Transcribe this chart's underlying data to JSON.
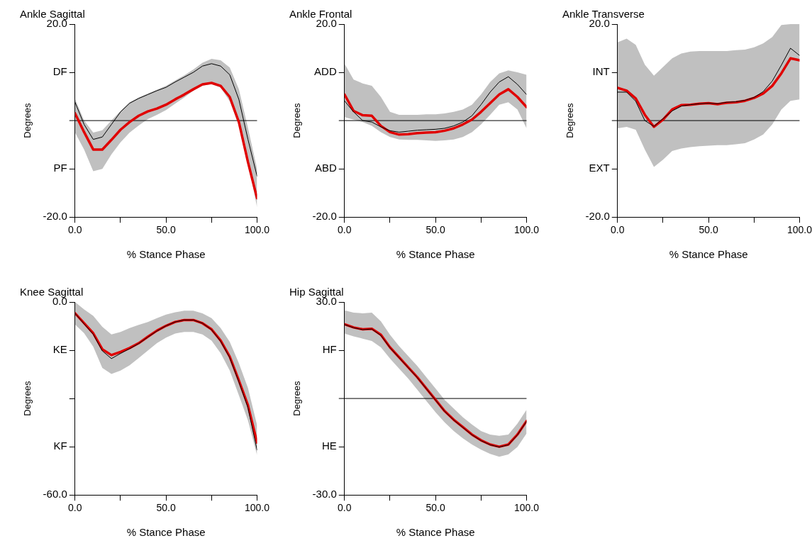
{
  "chart_data": [
    {
      "type": "line",
      "title": "Ankle Sagittal",
      "xlabel": "% Stance Phase",
      "ylabel": "Degrees",
      "x": [
        0,
        5,
        10,
        15,
        20,
        25,
        30,
        35,
        40,
        45,
        50,
        55,
        60,
        65,
        70,
        75,
        80,
        85,
        90,
        95,
        100
      ],
      "xlim": [
        0,
        100
      ],
      "xticks": [
        {
          "value": 0,
          "label": "0.0"
        },
        {
          "value": 25,
          "label": null
        },
        {
          "value": 50,
          "label": "50.0"
        },
        {
          "value": 75,
          "label": null
        },
        {
          "value": 100,
          "label": "100.0"
        }
      ],
      "ylim": [
        -20,
        20
      ],
      "yticks": [
        {
          "value": 20,
          "label": "20.0"
        },
        {
          "value": 10,
          "label": "DF"
        },
        {
          "value": -10,
          "label": "PF"
        },
        {
          "value": -20,
          "label": "-20.0"
        }
      ],
      "ref_lines": [
        {
          "axis": "y",
          "value": 0,
          "color": "#000000"
        }
      ],
      "grid": false,
      "legend": false,
      "marker": "none",
      "line_style": "solid",
      "series": [
        {
          "color": "#000000",
          "values": [
            3.8,
            -0.8,
            -3.9,
            -3.4,
            -0.8,
            1.8,
            3.6,
            4.6,
            5.4,
            6.2,
            6.9,
            8,
            9,
            10,
            11.3,
            11.8,
            11.3,
            9.5,
            4.4,
            -3.9,
            -11.5
          ],
          "lower": [
            -2.5,
            -6,
            -10.5,
            -10,
            -7,
            -4.5,
            -2.5,
            -1,
            0.3,
            1.2,
            2.2,
            3.5,
            4.8,
            6.2,
            7.2,
            7.6,
            6.8,
            4,
            -1,
            -8.5,
            -18
          ],
          "upper": [
            4.5,
            0,
            -2.5,
            -2,
            0,
            2,
            3.8,
            4.8,
            5.6,
            6.4,
            7.2,
            8.3,
            9.4,
            10.6,
            12,
            12.8,
            12.5,
            11,
            6.5,
            -1.5,
            -10
          ]
        },
        {
          "color": "#e00000",
          "values": [
            1.5,
            -2.4,
            -6,
            -6,
            -4,
            -1.9,
            -0.3,
            1,
            1.9,
            2.5,
            3.3,
            4.4,
            5.4,
            6.5,
            7.5,
            7.8,
            7.2,
            4.9,
            -0.3,
            -8.6,
            -16.1
          ]
        }
      ]
    },
    {
      "type": "line",
      "title": "Ankle Frontal",
      "xlabel": "% Stance Phase",
      "ylabel": "Degrees",
      "x": [
        0,
        5,
        10,
        15,
        20,
        25,
        30,
        35,
        40,
        45,
        50,
        55,
        60,
        65,
        70,
        75,
        80,
        85,
        90,
        95,
        100
      ],
      "xlim": [
        0,
        100
      ],
      "xticks": [
        {
          "value": 0,
          "label": "0.0"
        },
        {
          "value": 25,
          "label": null
        },
        {
          "value": 50,
          "label": "50.0"
        },
        {
          "value": 75,
          "label": null
        },
        {
          "value": 100,
          "label": "100.0"
        }
      ],
      "ylim": [
        -20,
        20
      ],
      "yticks": [
        {
          "value": 20,
          "label": "20.0"
        },
        {
          "value": 10,
          "label": "ADD"
        },
        {
          "value": -10,
          "label": "ABD"
        },
        {
          "value": -20,
          "label": "-20.0"
        }
      ],
      "ref_lines": [
        {
          "axis": "y",
          "value": 0,
          "color": "#000000"
        }
      ],
      "grid": false,
      "legend": false,
      "marker": "none",
      "line_style": "solid",
      "series": [
        {
          "color": "#000000",
          "values": [
            4.1,
            1.8,
            0,
            -0.3,
            -1.3,
            -2.1,
            -2.4,
            -2.2,
            -2,
            -1.9,
            -1.8,
            -1.6,
            -1.1,
            -0.3,
            1,
            3.3,
            5.9,
            8,
            9.1,
            7.5,
            5.4
          ],
          "lower": [
            0.7,
            0.2,
            -0.3,
            -1.1,
            -2.4,
            -3.4,
            -3.9,
            -4,
            -4,
            -4.1,
            -4.2,
            -4.1,
            -3.9,
            -3.4,
            -2.4,
            -0.8,
            1.2,
            3.3,
            3.8,
            2.3,
            -1.6
          ],
          "upper": [
            11.8,
            8.5,
            7.7,
            7.2,
            4.9,
            1.8,
            1.2,
            1.2,
            1.2,
            1.3,
            1.3,
            1.5,
            1.8,
            2.3,
            3.3,
            5.4,
            8,
            9.8,
            10.4,
            10,
            9.5
          ]
        },
        {
          "color": "#e00000",
          "values": [
            5.4,
            2,
            1.1,
            1,
            -1.1,
            -2.4,
            -2.9,
            -2.8,
            -2.6,
            -2.5,
            -2.4,
            -2.1,
            -1.6,
            -0.8,
            0.2,
            1.8,
            3.6,
            5.4,
            6.5,
            4.9,
            2.8
          ]
        }
      ]
    },
    {
      "type": "line",
      "title": "Ankle Transverse",
      "xlabel": "% Stance Phase",
      "ylabel": "Degrees",
      "x": [
        0,
        5,
        10,
        15,
        20,
        25,
        30,
        35,
        40,
        45,
        50,
        55,
        60,
        65,
        70,
        75,
        80,
        85,
        90,
        95,
        100
      ],
      "xlim": [
        0,
        100
      ],
      "xticks": [
        {
          "value": 0,
          "label": "0.0"
        },
        {
          "value": 25,
          "label": null
        },
        {
          "value": 50,
          "label": "50.0"
        },
        {
          "value": 75,
          "label": null
        },
        {
          "value": 100,
          "label": "100.0"
        }
      ],
      "ylim": [
        -20,
        20
      ],
      "yticks": [
        {
          "value": 20,
          "label": "20.0"
        },
        {
          "value": 10,
          "label": "INT"
        },
        {
          "value": -10,
          "label": "EXT"
        },
        {
          "value": -20,
          "label": "-20.0"
        }
      ],
      "ref_lines": [
        {
          "axis": "y",
          "value": 0,
          "color": "#000000"
        }
      ],
      "grid": false,
      "legend": false,
      "marker": "none",
      "line_style": "solid",
      "series": [
        {
          "color": "#000000",
          "values": [
            5.9,
            5.9,
            4,
            0,
            -1.2,
            0.4,
            2,
            3,
            3.3,
            3.5,
            3.6,
            3.5,
            3.8,
            3.9,
            4.2,
            4.8,
            6,
            8.2,
            11.5,
            15,
            13.5
          ],
          "lower": [
            -1.6,
            -1.3,
            -1.9,
            -6,
            -9.6,
            -8.1,
            -6.3,
            -5.8,
            -5.5,
            -5.3,
            -5.2,
            -5.1,
            -5.1,
            -4.9,
            -4.7,
            -3.9,
            -2.9,
            -0.8,
            2.3,
            4.1,
            4.4
          ],
          "upper": [
            16.2,
            17,
            15.7,
            11.6,
            9.3,
            11.1,
            12.9,
            13.9,
            14.3,
            14.4,
            14.4,
            14.4,
            14.4,
            14.6,
            14.7,
            15.2,
            16,
            17.3,
            19.8,
            20,
            20
          ]
        },
        {
          "color": "#e00000",
          "values": [
            6.8,
            6.2,
            4.6,
            1.2,
            -1.3,
            0.2,
            2.3,
            3.2,
            3.3,
            3.5,
            3.6,
            3.4,
            3.7,
            3.8,
            4.1,
            4.7,
            5.6,
            7.2,
            9.8,
            12.9,
            12.5
          ]
        }
      ]
    },
    {
      "type": "line",
      "title": "Knee Sagittal",
      "xlabel": "% Stance Phase",
      "ylabel": "Degrees",
      "x": [
        0,
        5,
        10,
        15,
        20,
        25,
        30,
        35,
        40,
        45,
        50,
        55,
        60,
        65,
        70,
        75,
        80,
        85,
        90,
        95,
        100
      ],
      "xlim": [
        0,
        100
      ],
      "xticks": [
        {
          "value": 0,
          "label": "0.0"
        },
        {
          "value": 25,
          "label": null
        },
        {
          "value": 50,
          "label": "50.0"
        },
        {
          "value": 75,
          "label": null
        },
        {
          "value": 100,
          "label": "100.0"
        }
      ],
      "ylim": [
        -60,
        0
      ],
      "yticks": [
        {
          "value": 0,
          "label": "0.0"
        },
        {
          "value": -15,
          "label": "KE"
        },
        {
          "value": -30,
          "label": null
        },
        {
          "value": -45,
          "label": "KF"
        },
        {
          "value": -60,
          "label": "-60.0"
        }
      ],
      "grid": false,
      "legend": false,
      "marker": "none",
      "line_style": "solid",
      "series": [
        {
          "color": "#000000",
          "values": [
            -3.5,
            -6.8,
            -10,
            -15.2,
            -17.6,
            -16,
            -14.5,
            -12.9,
            -10.9,
            -9,
            -7.4,
            -6.2,
            -5.6,
            -5.6,
            -6.6,
            -8.6,
            -12.2,
            -17.3,
            -24.8,
            -32.8,
            -46
          ],
          "lower": [
            -7,
            -9.7,
            -13.9,
            -20.5,
            -22.4,
            -21.3,
            -19.7,
            -17.4,
            -15.1,
            -12.8,
            -11.1,
            -9.8,
            -9.3,
            -9.3,
            -10.1,
            -12,
            -15.9,
            -21.3,
            -29,
            -36.8,
            -47.6
          ],
          "upper": [
            0,
            -2.3,
            -4.3,
            -7.7,
            -10.1,
            -9.3,
            -8.1,
            -7.1,
            -6.2,
            -5,
            -3.9,
            -3.2,
            -2.7,
            -2.7,
            -3.5,
            -5,
            -8.1,
            -12.4,
            -19,
            -26.7,
            -38.3
          ]
        },
        {
          "color": "#e00000",
          "values": [
            -3.5,
            -6.6,
            -9.7,
            -14.7,
            -16.5,
            -15.5,
            -14.3,
            -12.8,
            -10.8,
            -8.9,
            -7.4,
            -6.2,
            -5.6,
            -5.6,
            -6.6,
            -8.5,
            -12,
            -17,
            -24.4,
            -32.1,
            -43.7
          ]
        }
      ]
    },
    {
      "type": "line",
      "title": "Hip Sagittal",
      "xlabel": "% Stance Phase",
      "ylabel": "Degrees",
      "x": [
        0,
        5,
        10,
        15,
        20,
        25,
        30,
        35,
        40,
        45,
        50,
        55,
        60,
        65,
        70,
        75,
        80,
        85,
        90,
        95,
        100
      ],
      "xlim": [
        0,
        100
      ],
      "xticks": [
        {
          "value": 0,
          "label": "0.0"
        },
        {
          "value": 25,
          "label": null
        },
        {
          "value": 50,
          "label": "50.0"
        },
        {
          "value": 75,
          "label": null
        },
        {
          "value": 100,
          "label": "100.0"
        }
      ],
      "ylim": [
        -30,
        30
      ],
      "yticks": [
        {
          "value": 30,
          "label": "30.0"
        },
        {
          "value": 15,
          "label": "HF"
        },
        {
          "value": -15,
          "label": "HE"
        },
        {
          "value": -30,
          "label": "-30.0"
        }
      ],
      "ref_lines": [
        {
          "axis": "y",
          "value": 0,
          "color": "#000000"
        }
      ],
      "grid": false,
      "legend": false,
      "marker": "none",
      "line_style": "solid",
      "series": [
        {
          "color": "#000000",
          "values": [
            23,
            22,
            21.4,
            21.6,
            19.6,
            15.8,
            12.7,
            9.6,
            6.5,
            3,
            -0.5,
            -4,
            -6.7,
            -9,
            -11.3,
            -13.1,
            -14.4,
            -15.1,
            -14.4,
            -11.3,
            -7.1
          ],
          "lower": [
            20.2,
            19.3,
            18.6,
            17.9,
            15.9,
            12.4,
            9.3,
            6.2,
            2.7,
            -0.8,
            -4.3,
            -7.4,
            -10.1,
            -12.4,
            -14.3,
            -15.9,
            -17.2,
            -18.1,
            -17.4,
            -15.1,
            -10.9
          ],
          "upper": [
            27.4,
            26.7,
            26.5,
            26.7,
            24,
            19.8,
            16.3,
            13.2,
            10.1,
            6.6,
            3.1,
            -0.4,
            -3.1,
            -5.8,
            -8.1,
            -10.1,
            -11.2,
            -11.6,
            -11.2,
            -7.8,
            -3.5
          ]
        },
        {
          "color": "#e00000",
          "values": [
            23.1,
            22.1,
            21.5,
            21.7,
            19.8,
            15.9,
            12.8,
            9.7,
            6.6,
            3.1,
            -0.4,
            -3.9,
            -6.6,
            -8.9,
            -11.2,
            -13,
            -14.3,
            -15,
            -14.3,
            -11.2,
            -7
          ]
        }
      ]
    }
  ]
}
